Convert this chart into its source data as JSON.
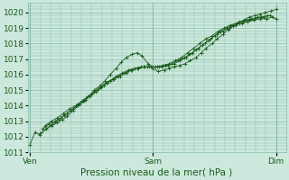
{
  "title": "Pression niveau de la mer( hPa )",
  "background_color": "#cce8dc",
  "grid_color": "#88bbaa",
  "line_color": "#1a5c1a",
  "marker_color": "#1a5c1a",
  "ylim": [
    1011.0,
    1020.6
  ],
  "yticks": [
    1011,
    1012,
    1013,
    1014,
    1015,
    1016,
    1017,
    1018,
    1019,
    1020
  ],
  "xtick_labels": [
    "Ven",
    "Sam",
    "Dim"
  ],
  "xtick_positions": [
    0.0,
    1.0,
    2.0
  ],
  "xlim": [
    -0.02,
    2.08
  ],
  "series": [
    {
      "x": [
        0.0,
        0.04,
        0.08,
        0.13,
        0.17,
        0.22,
        0.26,
        0.3,
        0.35,
        0.39,
        0.44,
        0.48,
        0.52,
        0.57,
        0.61,
        0.65,
        0.7,
        0.74,
        0.78,
        0.83,
        0.87,
        0.91,
        0.96,
        1.0,
        1.04,
        1.09,
        1.13,
        1.17,
        1.22,
        1.26,
        1.3,
        1.35,
        1.39,
        1.43,
        1.48,
        1.52,
        1.57,
        1.61,
        1.65,
        1.7,
        1.74,
        1.78,
        1.83,
        1.87,
        1.91,
        1.96,
        2.0
      ],
      "y": [
        1011.5,
        1012.3,
        1012.1,
        1012.5,
        1012.7,
        1012.9,
        1013.1,
        1013.3,
        1013.7,
        1014.0,
        1014.3,
        1014.6,
        1015.0,
        1015.3,
        1015.6,
        1016.0,
        1016.4,
        1016.8,
        1017.1,
        1017.3,
        1017.4,
        1017.2,
        1016.7,
        1016.4,
        1016.2,
        1016.3,
        1016.4,
        1016.5,
        1016.6,
        1016.7,
        1016.9,
        1017.1,
        1017.4,
        1017.7,
        1018.0,
        1018.3,
        1018.6,
        1018.9,
        1019.1,
        1019.3,
        1019.5,
        1019.7,
        1019.8,
        1019.9,
        1020.0,
        1020.1,
        1020.2
      ]
    },
    {
      "x": [
        0.1,
        0.15,
        0.2,
        0.25,
        0.3,
        0.35,
        0.4,
        0.45,
        0.5,
        0.55,
        0.6,
        0.65,
        0.7,
        0.75,
        0.8,
        0.85,
        0.9,
        0.95,
        1.0,
        1.05,
        1.1,
        1.15,
        1.2,
        1.25,
        1.3,
        1.35,
        1.4,
        1.45,
        1.5,
        1.55,
        1.6,
        1.65,
        1.7,
        1.75,
        1.8,
        1.85,
        1.9,
        1.95,
        2.0
      ],
      "y": [
        1012.5,
        1012.8,
        1013.0,
        1013.2,
        1013.5,
        1013.8,
        1014.1,
        1014.4,
        1014.7,
        1015.0,
        1015.3,
        1015.6,
        1015.9,
        1016.1,
        1016.3,
        1016.4,
        1016.5,
        1016.5,
        1016.5,
        1016.5,
        1016.6,
        1016.7,
        1016.9,
        1017.1,
        1017.3,
        1017.6,
        1017.9,
        1018.2,
        1018.5,
        1018.8,
        1019.0,
        1019.2,
        1019.4,
        1019.5,
        1019.6,
        1019.7,
        1019.7,
        1019.8,
        1019.6
      ]
    },
    {
      "x": [
        0.12,
        0.17,
        0.22,
        0.27,
        0.32,
        0.37,
        0.42,
        0.47,
        0.52,
        0.57,
        0.62,
        0.67,
        0.72,
        0.77,
        0.82,
        0.87,
        0.92,
        0.97,
        1.02,
        1.07,
        1.12,
        1.17,
        1.22,
        1.27,
        1.32,
        1.37,
        1.42,
        1.47,
        1.52,
        1.57,
        1.62,
        1.67,
        1.72,
        1.77,
        1.82,
        1.87,
        1.92,
        1.97
      ],
      "y": [
        1012.7,
        1013.0,
        1013.2,
        1013.5,
        1013.8,
        1014.0,
        1014.3,
        1014.6,
        1014.9,
        1015.2,
        1015.5,
        1015.7,
        1015.9,
        1016.1,
        1016.3,
        1016.4,
        1016.5,
        1016.5,
        1016.5,
        1016.5,
        1016.6,
        1016.7,
        1016.9,
        1017.1,
        1017.4,
        1017.7,
        1018.0,
        1018.3,
        1018.6,
        1018.8,
        1019.0,
        1019.2,
        1019.3,
        1019.4,
        1019.5,
        1019.6,
        1019.6,
        1019.7
      ]
    },
    {
      "x": [
        0.08,
        0.13,
        0.18,
        0.23,
        0.28,
        0.33,
        0.38,
        0.43,
        0.48,
        0.53,
        0.58,
        0.63,
        0.68,
        0.73,
        0.78,
        0.83,
        0.88,
        0.93,
        0.98,
        1.03,
        1.08,
        1.13,
        1.18,
        1.23,
        1.28,
        1.33,
        1.38,
        1.43,
        1.48,
        1.53,
        1.58,
        1.63,
        1.68,
        1.73,
        1.78,
        1.83,
        1.88,
        1.93
      ],
      "y": [
        1012.2,
        1012.5,
        1012.8,
        1013.1,
        1013.4,
        1013.7,
        1014.0,
        1014.3,
        1014.6,
        1014.9,
        1015.2,
        1015.5,
        1015.7,
        1015.9,
        1016.1,
        1016.3,
        1016.4,
        1016.5,
        1016.5,
        1016.5,
        1016.6,
        1016.7,
        1016.9,
        1017.1,
        1017.4,
        1017.7,
        1018.0,
        1018.3,
        1018.5,
        1018.8,
        1019.0,
        1019.2,
        1019.3,
        1019.4,
        1019.5,
        1019.6,
        1019.7,
        1019.8
      ]
    }
  ],
  "ylabel_fontsize": 6.5,
  "xlabel_fontsize": 7.5,
  "tick_labelsize": 6.5
}
